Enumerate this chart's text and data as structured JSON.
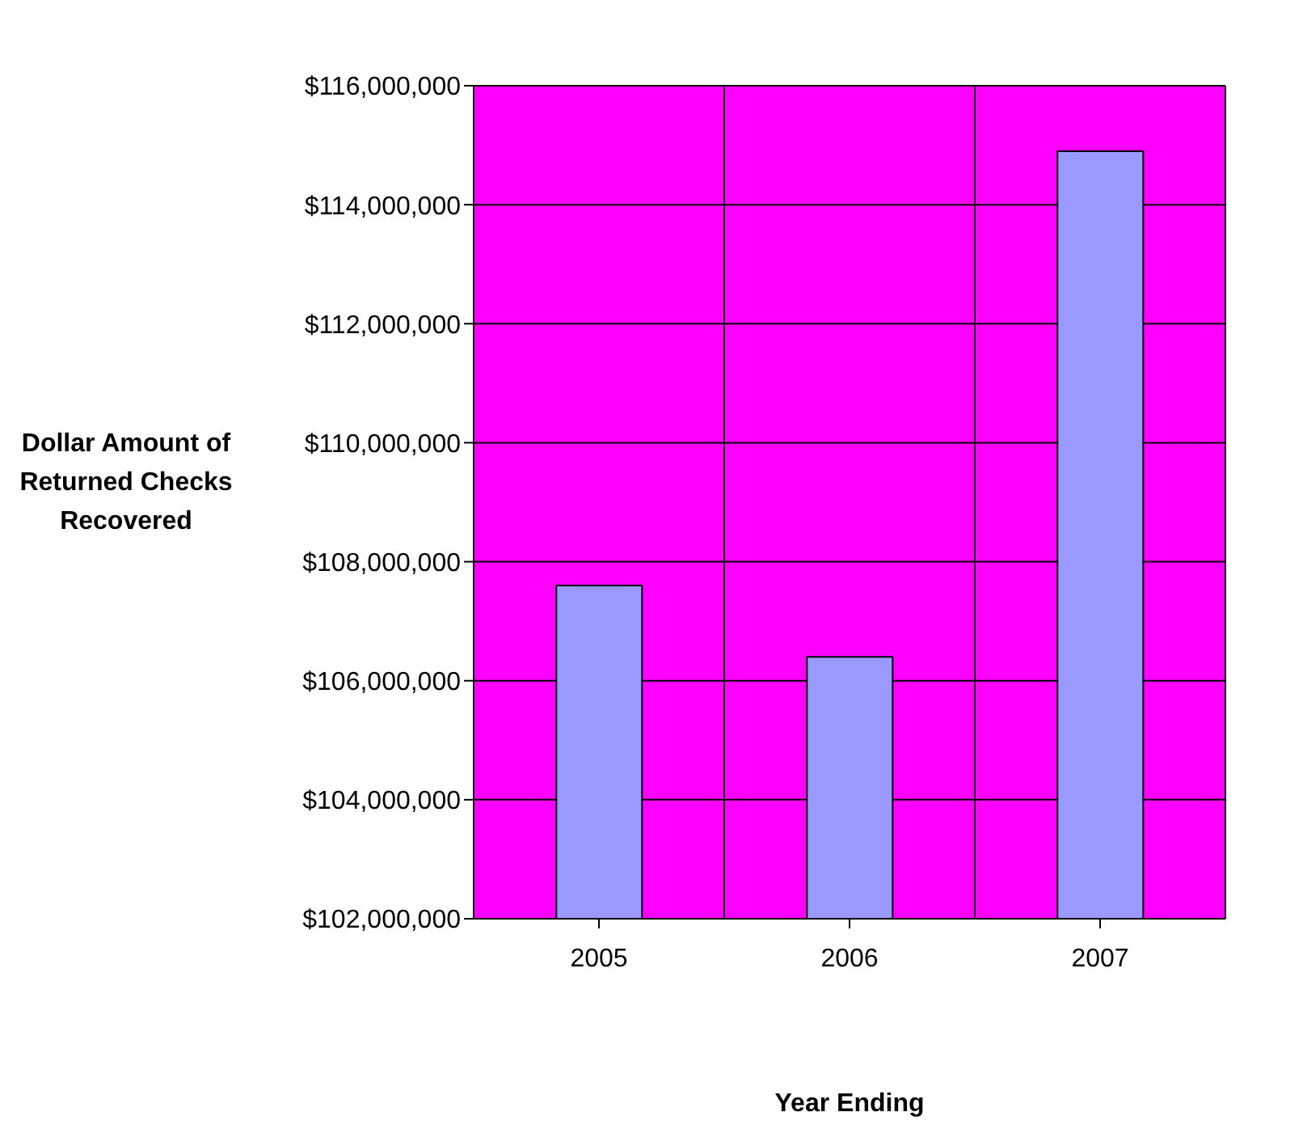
{
  "chart_data": {
    "type": "bar",
    "xlabel": "Year Ending",
    "ylabel": "Dollar Amount of Returned Checks Recovered",
    "categories": [
      "2005",
      "2006",
      "2007"
    ],
    "values": [
      107600000,
      106400000,
      114900000
    ],
    "color": "#9999ff",
    "ylim": [
      102000000,
      116000000
    ],
    "yticks": [
      {
        "value": 102000000,
        "label": "$102,000,000"
      },
      {
        "value": 104000000,
        "label": "$104,000,000"
      },
      {
        "value": 106000000,
        "label": "$106,000,000"
      },
      {
        "value": 108000000,
        "label": "$108,000,000"
      },
      {
        "value": 110000000,
        "label": "$110,000,000"
      },
      {
        "value": 112000000,
        "label": "$112,000,000"
      },
      {
        "value": 114000000,
        "label": "$114,000,000"
      },
      {
        "value": 116000000,
        "label": "$116,000,000"
      }
    ],
    "grid": true
  }
}
